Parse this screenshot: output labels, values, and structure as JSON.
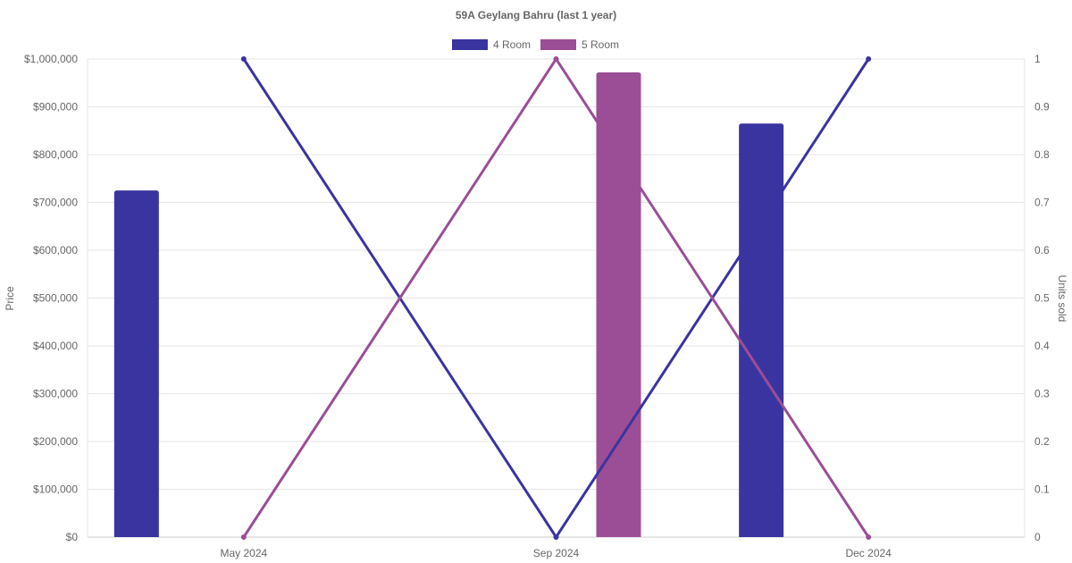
{
  "chart_data": {
    "type": "bar+line",
    "title": "59A Geylang Bahru (last 1 year)",
    "categories": [
      "May 2024",
      "Sep 2024",
      "Dec 2024"
    ],
    "legend_position": "top",
    "grid": true,
    "y_left": {
      "label": "Price",
      "range": [
        0,
        1000000
      ],
      "ticks": [
        "$0",
        "$100,000",
        "$200,000",
        "$300,000",
        "$400,000",
        "$500,000",
        "$600,000",
        "$700,000",
        "$800,000",
        "$900,000",
        "$1,000,000"
      ]
    },
    "y_right": {
      "label": "Units sold",
      "range": [
        0,
        1
      ],
      "ticks": [
        "0",
        "0.1",
        "0.2",
        "0.3",
        "0.4",
        "0.5",
        "0.6",
        "0.7",
        "0.8",
        "0.9",
        "1"
      ]
    },
    "series": [
      {
        "name": "4 Room",
        "color": "#3a34a0",
        "price": [
          725000,
          null,
          865000
        ],
        "units_sold": [
          1,
          0,
          1
        ]
      },
      {
        "name": "5 Room",
        "color": "#9b4e96",
        "price": [
          null,
          972000,
          null
        ],
        "units_sold": [
          0,
          1,
          0
        ]
      }
    ]
  }
}
